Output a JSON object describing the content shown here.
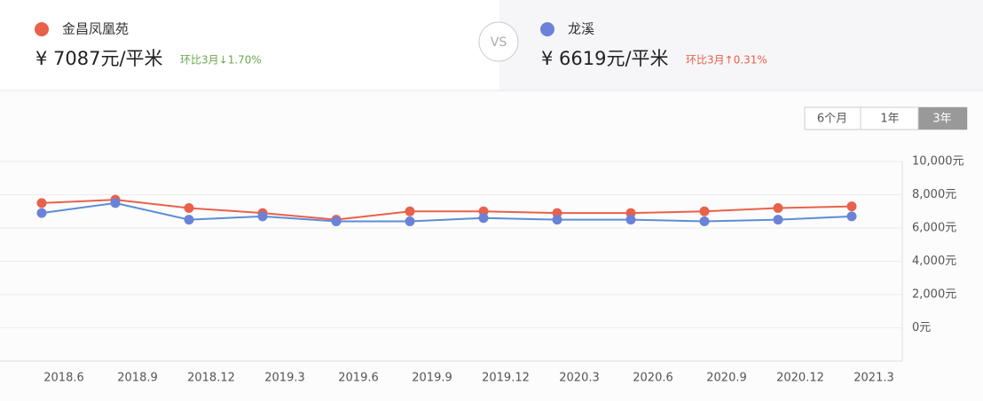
{
  "header": {
    "left": {
      "price": "¥ 7087元/平米",
      "change": "环比3月↓1.70%"
    },
    "vs": "VS",
    "right": {
      "price": "¥ 6619元/平米",
      "change": "环比3月↑0.31%"
    }
  },
  "range_buttons": [
    "6个月",
    "1年",
    "3年"
  ],
  "chart_data": {
    "type": "line",
    "categories": [
      "2018.6",
      "2018.9",
      "2018.12",
      "2019.3",
      "2019.6",
      "2019.9",
      "2019.12",
      "2020.3",
      "2020.6",
      "2020.9",
      "2020.12",
      "2021.3"
    ],
    "series": [
      {
        "name": "金昌凤凰苑",
        "color": "#e8614a",
        "values": [
          7500,
          7700,
          7200,
          6900,
          6500,
          7000,
          7000,
          6900,
          6900,
          7000,
          7200,
          7300
        ]
      },
      {
        "name": "龙溪",
        "color": "#5b8dd6",
        "values": [
          6900,
          7500,
          6500,
          6700,
          6400,
          6400,
          6600,
          6500,
          6500,
          6400,
          6500,
          6700
        ]
      }
    ],
    "ylim": [
      -2000,
      10000
    ],
    "yticks": [
      {
        "value": 0,
        "label": "0元"
      },
      {
        "value": 2000,
        "label": "2,000元"
      },
      {
        "value": 4000,
        "label": "4,000元"
      },
      {
        "value": 6000,
        "label": "6,000元"
      },
      {
        "value": 8000,
        "label": "8,000元"
      },
      {
        "value": 10000,
        "label": "10,000元"
      }
    ],
    "grid": true
  }
}
